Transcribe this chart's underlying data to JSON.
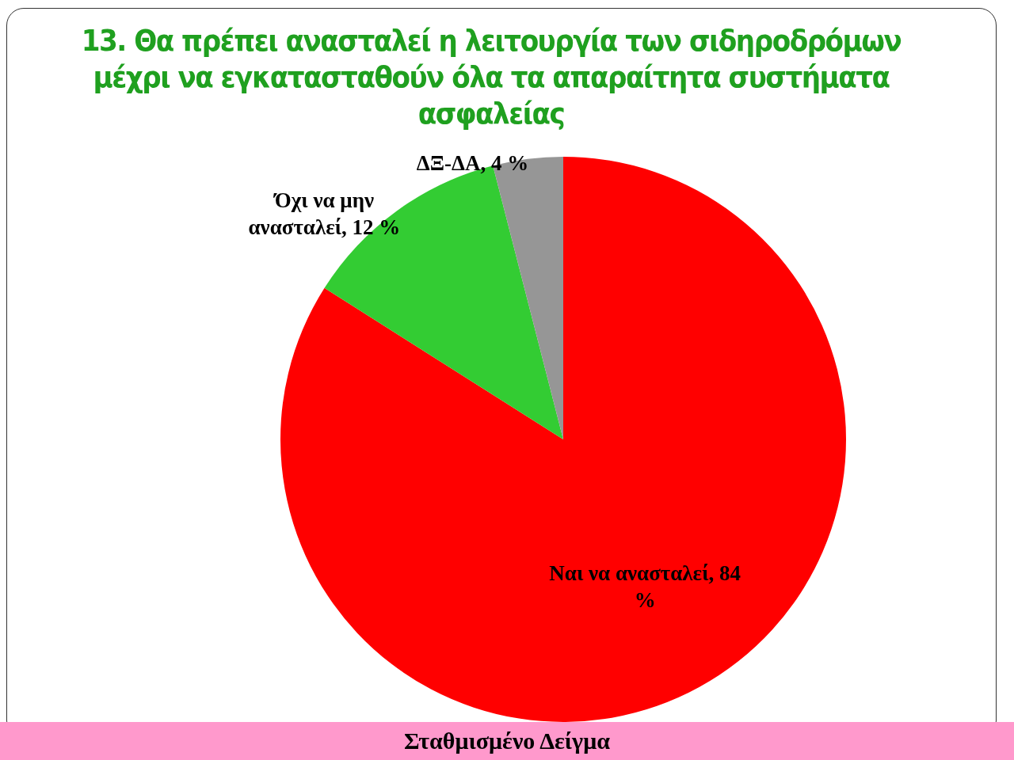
{
  "chart_data": {
    "type": "pie",
    "title": "13. Θα πρέπει ανασταλεί  η λειτουργία των σιδηροδρόμων μέχρι να εγκατασταθούν όλα τα απαραίτητα συστήματα ασφαλείας",
    "categories": [
      "Ναι να ανασταλεί",
      "Όχι να μην ανασταλεί",
      "ΔΞ-ΔΑ"
    ],
    "values": [
      84,
      12,
      4
    ],
    "value_labels": [
      "84 %",
      "12 %",
      "4 %"
    ],
    "colors": [
      "#ff0000",
      "#33cc33",
      "#969696"
    ],
    "legend": false,
    "annotations": [
      "Σταθμισμένο Δείγμα"
    ]
  }
}
